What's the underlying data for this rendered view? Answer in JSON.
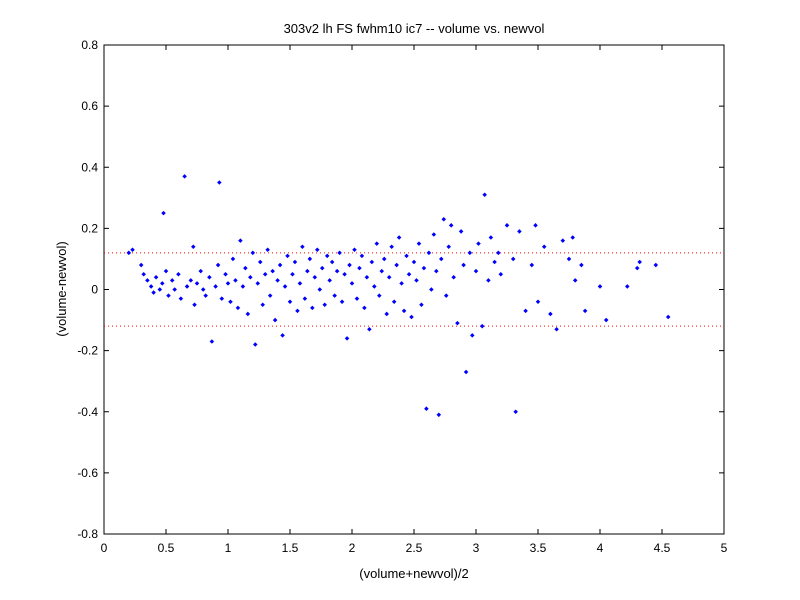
{
  "chart_data": {
    "type": "scatter",
    "title": "303v2 lh FS fwhm10 ic7 -- volume vs. newvol",
    "xlabel": "(volume+newvol)/2",
    "ylabel": "(volume-newvol)",
    "xlim": [
      0,
      5
    ],
    "ylim": [
      -0.8,
      0.8
    ],
    "xticks": [
      "0",
      "0.5",
      "1",
      "1.5",
      "2",
      "2.5",
      "3",
      "3.5",
      "4",
      "4.5",
      "5"
    ],
    "yticks": [
      "-0.8",
      "-0.6",
      "-0.4",
      "-0.2",
      "0",
      "0.2",
      "0.4",
      "0.6",
      "0.8"
    ],
    "grid": false,
    "marker_color": "#0000ff",
    "reference_line_color": "#ff0000",
    "reference_lines_y": [
      0.12,
      -0.12
    ],
    "series": [
      {
        "points": [
          [
            0.2,
            0.12
          ],
          [
            0.23,
            0.13
          ],
          [
            0.3,
            0.08
          ],
          [
            0.32,
            0.05
          ],
          [
            0.35,
            0.03
          ],
          [
            0.38,
            0.01
          ],
          [
            0.4,
            -0.01
          ],
          [
            0.42,
            0.04
          ],
          [
            0.45,
            0.0
          ],
          [
            0.47,
            0.02
          ],
          [
            0.48,
            0.25
          ],
          [
            0.5,
            0.06
          ],
          [
            0.52,
            -0.02
          ],
          [
            0.55,
            0.03
          ],
          [
            0.57,
            0.0
          ],
          [
            0.6,
            0.05
          ],
          [
            0.62,
            -0.03
          ],
          [
            0.65,
            0.37
          ],
          [
            0.67,
            0.01
          ],
          [
            0.7,
            0.03
          ],
          [
            0.72,
            0.14
          ],
          [
            0.73,
            -0.05
          ],
          [
            0.75,
            0.02
          ],
          [
            0.78,
            0.06
          ],
          [
            0.8,
            0.0
          ],
          [
            0.82,
            -0.02
          ],
          [
            0.85,
            0.04
          ],
          [
            0.87,
            -0.17
          ],
          [
            0.9,
            0.01
          ],
          [
            0.92,
            0.08
          ],
          [
            0.93,
            0.35
          ],
          [
            0.95,
            -0.03
          ],
          [
            0.98,
            0.05
          ],
          [
            1.0,
            0.02
          ],
          [
            1.02,
            -0.04
          ],
          [
            1.04,
            0.1
          ],
          [
            1.06,
            0.03
          ],
          [
            1.08,
            -0.06
          ],
          [
            1.1,
            0.16
          ],
          [
            1.12,
            0.01
          ],
          [
            1.14,
            0.07
          ],
          [
            1.16,
            -0.08
          ],
          [
            1.18,
            0.04
          ],
          [
            1.2,
            0.12
          ],
          [
            1.22,
            -0.18
          ],
          [
            1.24,
            0.02
          ],
          [
            1.26,
            0.09
          ],
          [
            1.28,
            -0.05
          ],
          [
            1.3,
            0.05
          ],
          [
            1.32,
            0.13
          ],
          [
            1.34,
            -0.02
          ],
          [
            1.36,
            0.06
          ],
          [
            1.38,
            -0.1
          ],
          [
            1.4,
            0.03
          ],
          [
            1.42,
            0.08
          ],
          [
            1.44,
            -0.15
          ],
          [
            1.46,
            0.01
          ],
          [
            1.48,
            0.11
          ],
          [
            1.5,
            -0.04
          ],
          [
            1.52,
            0.05
          ],
          [
            1.54,
            0.09
          ],
          [
            1.56,
            -0.07
          ],
          [
            1.58,
            0.02
          ],
          [
            1.6,
            0.14
          ],
          [
            1.62,
            -0.03
          ],
          [
            1.64,
            0.06
          ],
          [
            1.66,
            0.1
          ],
          [
            1.68,
            -0.06
          ],
          [
            1.7,
            0.04
          ],
          [
            1.72,
            0.13
          ],
          [
            1.74,
            0.0
          ],
          [
            1.76,
            0.07
          ],
          [
            1.78,
            -0.05
          ],
          [
            1.8,
            0.11
          ],
          [
            1.82,
            0.03
          ],
          [
            1.84,
            0.09
          ],
          [
            1.86,
            -0.02
          ],
          [
            1.88,
            0.06
          ],
          [
            1.9,
            0.12
          ],
          [
            1.92,
            -0.04
          ],
          [
            1.94,
            0.05
          ],
          [
            1.96,
            -0.16
          ],
          [
            1.98,
            0.08
          ],
          [
            2.0,
            0.02
          ],
          [
            2.02,
            0.13
          ],
          [
            2.04,
            -0.03
          ],
          [
            2.06,
            0.07
          ],
          [
            2.08,
            0.11
          ],
          [
            2.1,
            -0.06
          ],
          [
            2.12,
            0.04
          ],
          [
            2.14,
            -0.13
          ],
          [
            2.16,
            0.09
          ],
          [
            2.18,
            0.01
          ],
          [
            2.2,
            0.15
          ],
          [
            2.22,
            -0.02
          ],
          [
            2.24,
            0.06
          ],
          [
            2.26,
            0.1
          ],
          [
            2.28,
            -0.08
          ],
          [
            2.3,
            0.04
          ],
          [
            2.32,
            0.14
          ],
          [
            2.34,
            -0.04
          ],
          [
            2.36,
            0.08
          ],
          [
            2.38,
            0.17
          ],
          [
            2.4,
            0.02
          ],
          [
            2.42,
            -0.07
          ],
          [
            2.44,
            0.11
          ],
          [
            2.46,
            0.05
          ],
          [
            2.48,
            -0.09
          ],
          [
            2.5,
            0.09
          ],
          [
            2.52,
            0.03
          ],
          [
            2.54,
            0.15
          ],
          [
            2.56,
            -0.05
          ],
          [
            2.58,
            0.07
          ],
          [
            2.6,
            -0.39
          ],
          [
            2.62,
            0.12
          ],
          [
            2.64,
            0.0
          ],
          [
            2.66,
            0.18
          ],
          [
            2.68,
            0.06
          ],
          [
            2.7,
            -0.41
          ],
          [
            2.72,
            0.1
          ],
          [
            2.74,
            0.23
          ],
          [
            2.76,
            -0.02
          ],
          [
            2.78,
            0.14
          ],
          [
            2.8,
            0.21
          ],
          [
            2.82,
            0.04
          ],
          [
            2.85,
            -0.11
          ],
          [
            2.88,
            0.19
          ],
          [
            2.9,
            0.08
          ],
          [
            2.92,
            -0.27
          ],
          [
            2.95,
            0.12
          ],
          [
            2.97,
            -0.15
          ],
          [
            3.0,
            0.06
          ],
          [
            3.02,
            0.15
          ],
          [
            3.05,
            -0.12
          ],
          [
            3.07,
            0.31
          ],
          [
            3.1,
            0.03
          ],
          [
            3.12,
            0.17
          ],
          [
            3.15,
            0.09
          ],
          [
            3.18,
            0.12
          ],
          [
            3.2,
            0.05
          ],
          [
            3.25,
            0.21
          ],
          [
            3.3,
            0.1
          ],
          [
            3.32,
            -0.4
          ],
          [
            3.35,
            0.19
          ],
          [
            3.4,
            -0.07
          ],
          [
            3.45,
            0.08
          ],
          [
            3.48,
            0.21
          ],
          [
            3.5,
            -0.04
          ],
          [
            3.55,
            0.14
          ],
          [
            3.6,
            -0.08
          ],
          [
            3.65,
            -0.13
          ],
          [
            3.7,
            0.16
          ],
          [
            3.75,
            0.1
          ],
          [
            3.78,
            0.17
          ],
          [
            3.8,
            0.03
          ],
          [
            3.85,
            0.08
          ],
          [
            3.88,
            -0.07
          ],
          [
            4.0,
            0.01
          ],
          [
            4.05,
            -0.1
          ],
          [
            4.22,
            0.01
          ],
          [
            4.3,
            0.07
          ],
          [
            4.32,
            0.09
          ],
          [
            4.45,
            0.08
          ],
          [
            4.55,
            -0.09
          ]
        ]
      }
    ]
  }
}
